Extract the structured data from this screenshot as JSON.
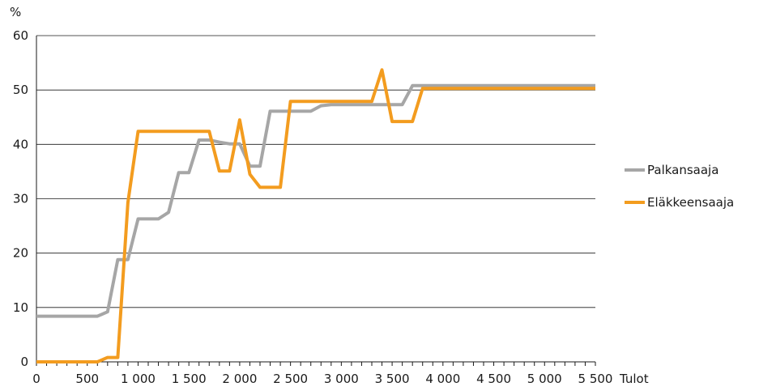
{
  "chart_data": {
    "type": "line",
    "title": "",
    "ylabel": "%",
    "xlabel": "Tulot",
    "xlim": [
      0,
      5500
    ],
    "ylim": [
      0,
      60
    ],
    "grid": "horizontal",
    "legend_position": "right",
    "x_ticks": [
      0,
      500,
      1000,
      1500,
      2000,
      2500,
      3000,
      3500,
      4000,
      4500,
      5000,
      5500
    ],
    "x_tick_labels": [
      "0",
      "500",
      "1 000",
      "1 500",
      "2 000",
      "2 500",
      "3 000",
      "3 500",
      "4 000",
      "4 500",
      "5 000",
      "5 500"
    ],
    "y_ticks": [
      0,
      10,
      20,
      30,
      40,
      50,
      60
    ],
    "y_tick_labels": [
      "0",
      "10",
      "20",
      "30",
      "40",
      "50",
      "60"
    ],
    "series": [
      {
        "name": "Palkansaaja",
        "color": "#a6a6a6",
        "points": [
          [
            0,
            8.4
          ],
          [
            600,
            8.4
          ],
          [
            700,
            9.2
          ],
          [
            800,
            18.8
          ],
          [
            900,
            18.8
          ],
          [
            1000,
            26.3
          ],
          [
            1100,
            26.3
          ],
          [
            1200,
            26.3
          ],
          [
            1300,
            27.5
          ],
          [
            1400,
            34.8
          ],
          [
            1500,
            34.8
          ],
          [
            1600,
            40.8
          ],
          [
            1700,
            40.8
          ],
          [
            1800,
            40.4
          ],
          [
            1900,
            40.1
          ],
          [
            2000,
            40.1
          ],
          [
            2100,
            36.0
          ],
          [
            2200,
            36.0
          ],
          [
            2300,
            46.1
          ],
          [
            2400,
            46.1
          ],
          [
            2500,
            46.1
          ],
          [
            2600,
            46.1
          ],
          [
            2700,
            46.1
          ],
          [
            2800,
            47.1
          ],
          [
            2900,
            47.3
          ],
          [
            3000,
            47.3
          ],
          [
            3100,
            47.3
          ],
          [
            3200,
            47.3
          ],
          [
            3300,
            47.3
          ],
          [
            3400,
            47.3
          ],
          [
            3500,
            47.3
          ],
          [
            3600,
            47.3
          ],
          [
            3700,
            50.8
          ],
          [
            3800,
            50.8
          ],
          [
            5500,
            50.8
          ]
        ]
      },
      {
        "name": "Eläkkeensaaja",
        "color": "#f39c1f",
        "points": [
          [
            0,
            0
          ],
          [
            600,
            0
          ],
          [
            700,
            0.8
          ],
          [
            800,
            0.8
          ],
          [
            900,
            29.3
          ],
          [
            1000,
            42.4
          ],
          [
            1100,
            42.4
          ],
          [
            1200,
            42.4
          ],
          [
            1300,
            42.4
          ],
          [
            1400,
            42.4
          ],
          [
            1500,
            42.4
          ],
          [
            1600,
            42.4
          ],
          [
            1700,
            42.4
          ],
          [
            1800,
            35.1
          ],
          [
            1900,
            35.1
          ],
          [
            2000,
            44.5
          ],
          [
            2100,
            34.5
          ],
          [
            2200,
            32.1
          ],
          [
            2300,
            32.1
          ],
          [
            2400,
            32.1
          ],
          [
            2500,
            47.9
          ],
          [
            2600,
            47.9
          ],
          [
            2700,
            47.9
          ],
          [
            2800,
            47.9
          ],
          [
            2900,
            47.9
          ],
          [
            3000,
            47.9
          ],
          [
            3100,
            47.9
          ],
          [
            3200,
            47.9
          ],
          [
            3300,
            47.9
          ],
          [
            3400,
            53.7
          ],
          [
            3500,
            44.2
          ],
          [
            3600,
            44.2
          ],
          [
            3700,
            44.2
          ],
          [
            3800,
            50.3
          ],
          [
            5500,
            50.3
          ]
        ]
      }
    ]
  }
}
